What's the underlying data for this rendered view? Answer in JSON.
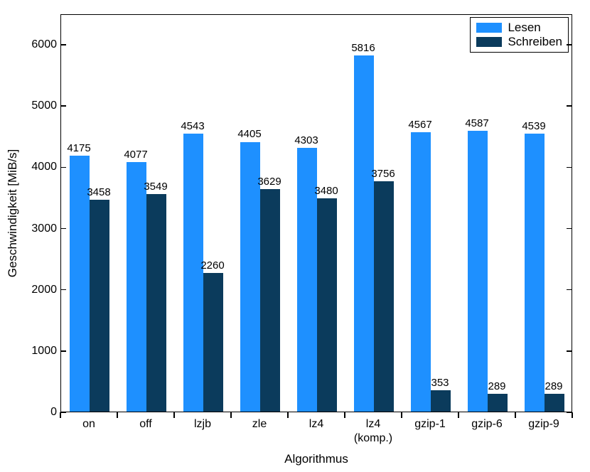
{
  "chart": {
    "type": "bar",
    "xlabel": "Algorithmus",
    "ylabel": "Geschwindigkeit [MiB/s]",
    "label_fontsize": 17,
    "tick_fontsize": 16,
    "value_fontsize": 15,
    "background_color": "#ffffff",
    "border_color": "#000000",
    "ylim": [
      0,
      6500
    ],
    "yticks": [
      0,
      1000,
      2000,
      3000,
      4000,
      5000,
      6000
    ],
    "categories": [
      "on",
      "off",
      "lzjb",
      "zle",
      "lz4",
      "lz4\n(komp.)",
      "gzip-1",
      "gzip-6",
      "gzip-9"
    ],
    "series": [
      {
        "name": "Lesen",
        "color": "#1e90ff",
        "values": [
          4175,
          4077,
          4543,
          4405,
          4303,
          5816,
          4567,
          4587,
          4539
        ]
      },
      {
        "name": "Schreiben",
        "color": "#0b3b5c",
        "values": [
          3458,
          3549,
          2260,
          3629,
          3480,
          3756,
          353,
          289,
          289
        ]
      }
    ],
    "legend_position": "top-right",
    "bar_group_width_ratio": 0.7,
    "aspect": "830x664"
  }
}
